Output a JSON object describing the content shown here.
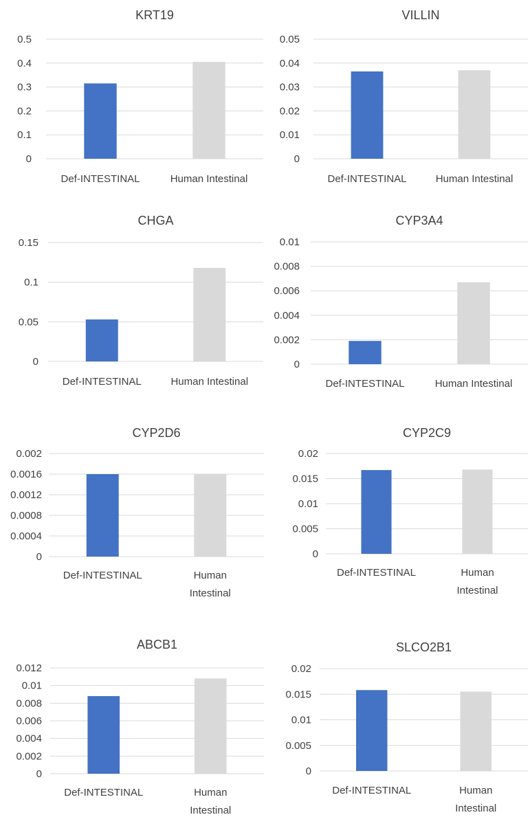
{
  "colors": {
    "series_1": "#4472c4",
    "series_2": "#d9d9d9",
    "grid": "#d9d9d9",
    "text": "#404040"
  },
  "chart_data": [
    {
      "type": "bar",
      "title": "KRT19",
      "categories": [
        "Def-INTESTINAL",
        "Human Intestinal"
      ],
      "values": [
        0.315,
        0.405
      ],
      "ylim": [
        0,
        0.5
      ],
      "yticks": [
        "0",
        "0.1",
        "0.2",
        "0.3",
        "0.4",
        "0.5"
      ],
      "grid": true,
      "legend": "none"
    },
    {
      "type": "bar",
      "title": "VILLIN",
      "categories": [
        "Def-INTESTINAL",
        "Human Intestinal"
      ],
      "values": [
        0.0365,
        0.037
      ],
      "ylim": [
        0,
        0.05
      ],
      "yticks": [
        "0",
        "0.01",
        "0.02",
        "0.03",
        "0.04",
        "0.05"
      ],
      "grid": true,
      "legend": "none"
    },
    {
      "type": "bar",
      "title": "CHGA",
      "categories": [
        "Def-INTESTINAL",
        "Human Intestinal"
      ],
      "values": [
        0.053,
        0.118
      ],
      "ylim": [
        0,
        0.15
      ],
      "yticks": [
        "0",
        "0.05",
        "0.1",
        "0.15"
      ],
      "grid": true,
      "legend": "none"
    },
    {
      "type": "bar",
      "title": "CYP3A4",
      "categories": [
        "Def-INTESTINAL",
        "Human Intestinal"
      ],
      "values": [
        0.0019,
        0.0067
      ],
      "ylim": [
        0,
        0.01
      ],
      "yticks": [
        "0",
        "0.002",
        "0.004",
        "0.006",
        "0.008",
        "0.01"
      ],
      "grid": true,
      "legend": "none"
    },
    {
      "type": "bar",
      "title": "CYP2D6",
      "categories": [
        "Def-INTESTINAL",
        "Human Intestinal"
      ],
      "values": [
        0.0016,
        0.0016
      ],
      "ylim": [
        0,
        0.002
      ],
      "yticks": [
        "0",
        "0.0004",
        "0.0008",
        "0.0012",
        "0.0016",
        "0.002"
      ],
      "grid": true,
      "legend": "none"
    },
    {
      "type": "bar",
      "title": "CYP2C9",
      "categories": [
        "Def-INTESTINAL",
        "Human Intestinal"
      ],
      "values": [
        0.0167,
        0.0168
      ],
      "ylim": [
        0,
        0.02
      ],
      "yticks": [
        "0",
        "0.005",
        "0.01",
        "0.015",
        "0.02"
      ],
      "grid": true,
      "legend": "none"
    },
    {
      "type": "bar",
      "title": "ABCB1",
      "categories": [
        "Def-INTESTINAL",
        "Human Intestinal"
      ],
      "values": [
        0.0088,
        0.0108
      ],
      "ylim": [
        0,
        0.012
      ],
      "yticks": [
        "0",
        "0.002",
        "0.004",
        "0.006",
        "0.008",
        "0.01",
        "0.012"
      ],
      "grid": true,
      "legend": "none"
    },
    {
      "type": "bar",
      "title": "SLCO2B1",
      "categories": [
        "Def-INTESTINAL",
        "Human Intestinal"
      ],
      "values": [
        0.0158,
        0.0155
      ],
      "ylim": [
        0,
        0.02
      ],
      "yticks": [
        "0",
        "0.005",
        "0.01",
        "0.015",
        "0.02"
      ],
      "grid": true,
      "legend": "none"
    }
  ]
}
